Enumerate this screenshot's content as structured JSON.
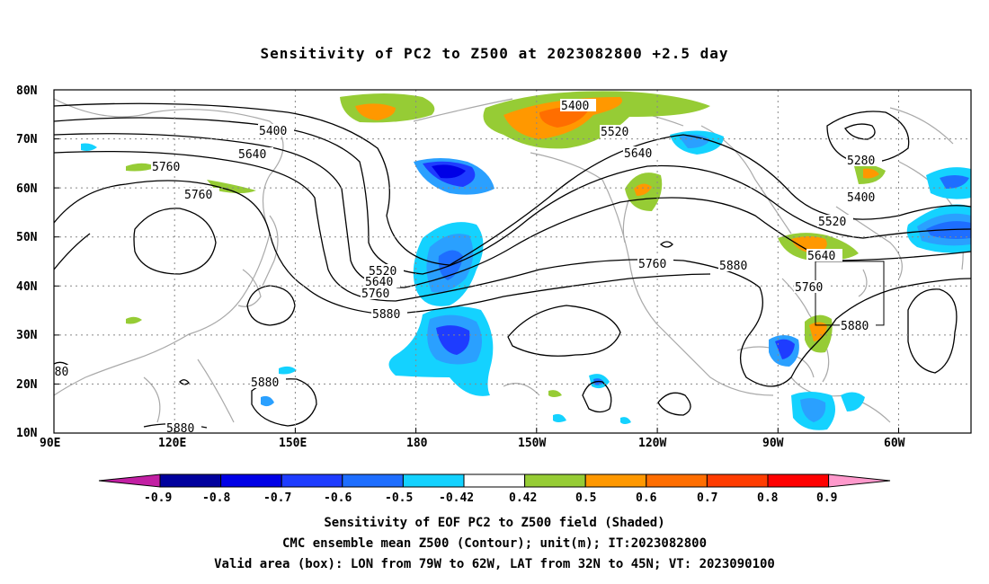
{
  "title": "Sensitivity of PC2 to Z500 at 2023082800 +2.5 day",
  "lat_labels": [
    "80N",
    "70N",
    "60N",
    "50N",
    "40N",
    "30N",
    "20N",
    "10N"
  ],
  "lon_labels": [
    "90E",
    "120E",
    "150E",
    "180",
    "150W",
    "120W",
    "90W",
    "60W"
  ],
  "contour_labels": [
    "5400",
    "5520",
    "5640",
    "5760",
    "5880",
    "5280"
  ],
  "colorbar": {
    "labels": [
      "-0.9",
      "-0.8",
      "-0.7",
      "-0.6",
      "-0.5",
      "-0.42",
      "0.42",
      "0.5",
      "0.6",
      "0.7",
      "0.8",
      "0.9"
    ],
    "colors": [
      "#c21fa3",
      "#00009d",
      "#0000e6",
      "#1e3cff",
      "#1e6eff",
      "#2aa0ff",
      "#14d2ff",
      "#ffffff",
      "#96cc35",
      "#ff9800",
      "#ff6e00",
      "#ff3c00",
      "#ff0000",
      "#ff99cc"
    ]
  },
  "valid_box": {
    "lon_from": "79W",
    "lon_to": "62W",
    "lat_from": "32N",
    "lat_to": "45N"
  },
  "captions": {
    "line1": "Sensitivity of EOF PC2 to Z500 field (Shaded)",
    "line2": "CMC ensemble mean Z500 (Contour); unit(m); IT:2023082800",
    "line3": "Valid area (box): LON from 79W to 62W, LAT from 32N to 45N; VT: 2023090100"
  }
}
